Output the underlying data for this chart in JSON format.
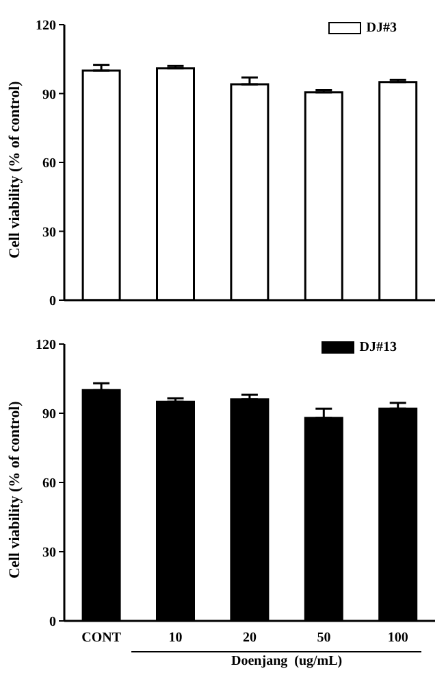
{
  "chart_data": [
    {
      "type": "bar",
      "ylabel": "Cell viability (% of control)",
      "categories": [
        null,
        null,
        null,
        null,
        null
      ],
      "series": [
        {
          "name": "DJ#3",
          "color": "#ffffff",
          "values": [
            100,
            101,
            94,
            90.5,
            95
          ],
          "errors": [
            [
              100,
              102.5
            ],
            [
              101,
              102
            ],
            [
              94,
              97
            ],
            [
              90.5,
              91.5
            ],
            [
              95,
              96
            ]
          ]
        }
      ],
      "ylim": [
        0,
        120
      ],
      "yticks": [
        0,
        30,
        60,
        90,
        120
      ],
      "legend": "top right",
      "tick_labels": "y"
    },
    {
      "type": "bar",
      "ylabel": "Cell viability (% of control)",
      "xlabel": "Doenjang  (ug/mL)",
      "categories": [
        "CONT",
        "10",
        "20",
        "50",
        "100"
      ],
      "series": [
        {
          "name": "DJ#13",
          "color": "#000000",
          "values": [
            100,
            95,
            96,
            88,
            92
          ],
          "errors": [
            [
              100,
              103
            ],
            [
              95,
              96.5
            ],
            [
              96,
              98
            ],
            [
              88,
              92
            ],
            [
              92,
              94.5
            ]
          ]
        }
      ],
      "ylim": [
        0,
        120
      ],
      "yticks": [
        0,
        30,
        60,
        90,
        120
      ],
      "legend": "top right"
    }
  ]
}
